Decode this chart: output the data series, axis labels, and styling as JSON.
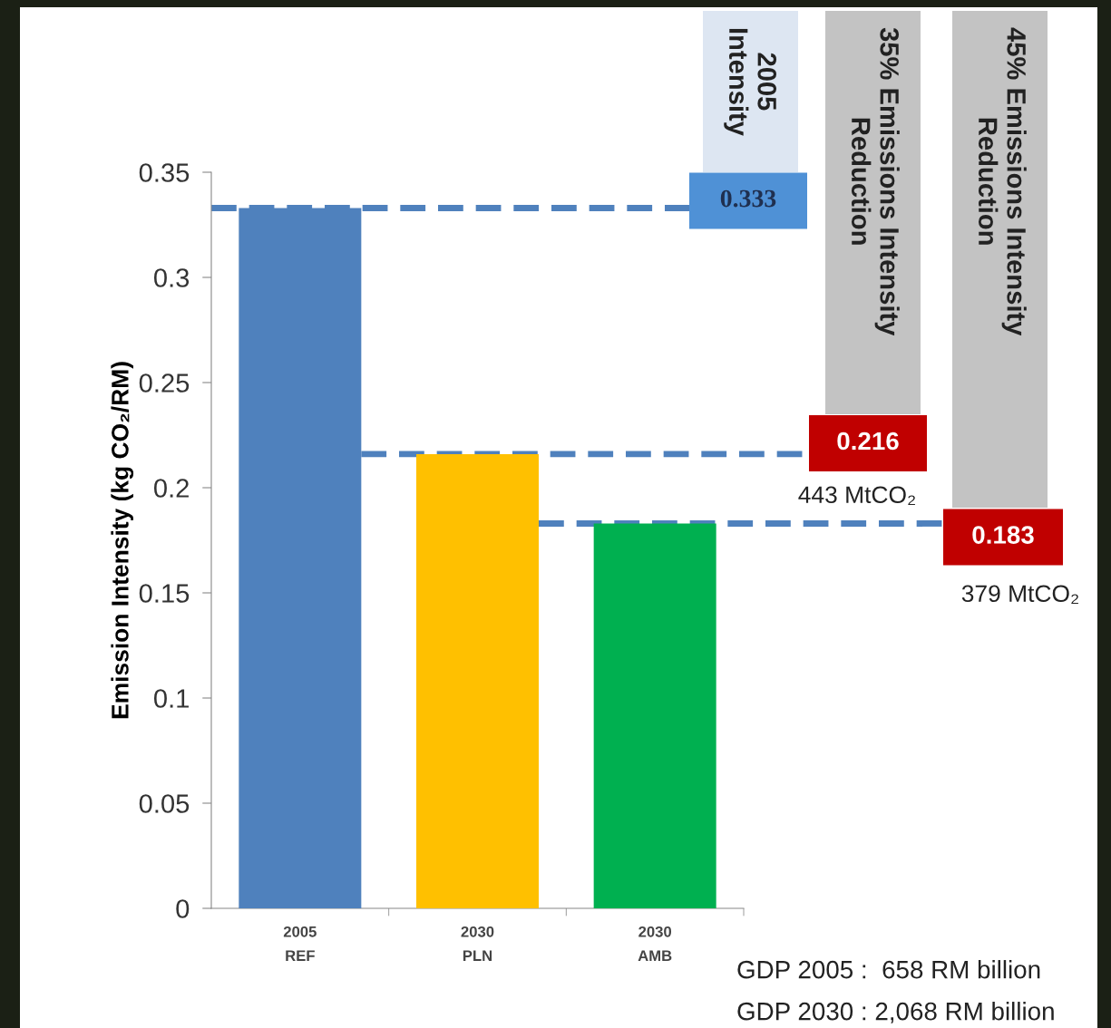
{
  "chart_data": {
    "type": "bar",
    "ylabel": "Emission Intensity (kg CO₂/RM)",
    "categories": [
      "2005\nREF",
      "2030\nPLN",
      "2030\nAMB"
    ],
    "values": [
      0.333,
      0.216,
      0.183
    ],
    "colors": [
      "#4f81bd",
      "#ffc000",
      "#00b050"
    ],
    "ylim": [
      0,
      0.35
    ],
    "yticks": [
      0,
      0.05,
      0.1,
      0.15,
      0.2,
      0.25,
      0.3,
      0.35
    ],
    "grid": false,
    "legend": false,
    "ref_lines": [
      {
        "axis": "y",
        "value": 0.333,
        "label": "0.333",
        "color": "#4f81bd",
        "line_style": "dashed"
      },
      {
        "axis": "y",
        "value": 0.216,
        "label": "0.216",
        "color": "#4f81bd",
        "line_style": "dashed"
      },
      {
        "axis": "y",
        "value": 0.183,
        "label": "0.183",
        "color": "#4f81bd",
        "line_style": "dashed"
      }
    ],
    "annotations": [
      "2005\nIntensity",
      "35% Emissions Intensity\nReduction",
      "45% Emissions Intensity\nReduction",
      "443 MtCO₂",
      "379 MtCO₂",
      "GDP 2005 :  658 RM billion",
      "GDP 2030 : 2,068 RM billion"
    ]
  }
}
